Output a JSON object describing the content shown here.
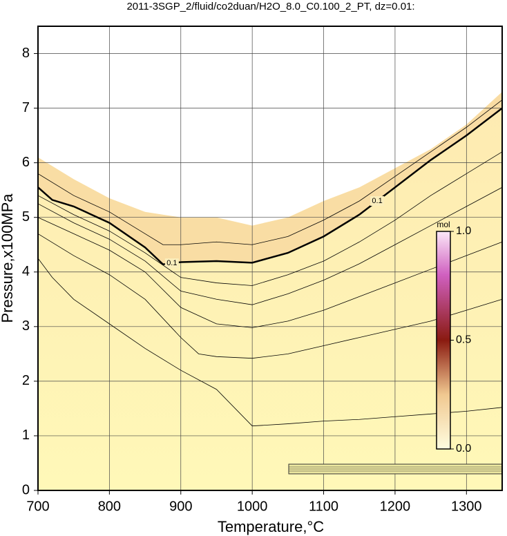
{
  "chart_data": {
    "type": "contour",
    "title": "2011-3SGP_2/fluid/co2duan/H2O_8.0_C0.100_2_PT, dz=0.01:",
    "x_label": "Temperature,°C",
    "y_label": "Pressure,x100MPa",
    "xlim": [
      700,
      1350
    ],
    "ylim": [
      0,
      8.5
    ],
    "xticks": [
      700,
      800,
      900,
      1000,
      1100,
      1200,
      1300
    ],
    "yticks": [
      0,
      1,
      2,
      3,
      4,
      5,
      6,
      7,
      8
    ],
    "grid": true,
    "boundary": {
      "x": [
        700,
        750,
        800,
        850,
        875,
        900,
        950,
        1000,
        1050,
        1100,
        1150,
        1200,
        1250,
        1300,
        1350
      ],
      "values": [
        6.1,
        5.7,
        5.35,
        5.1,
        5.05,
        5.0,
        5.0,
        4.85,
        5.0,
        5.3,
        5.55,
        5.9,
        6.25,
        6.7,
        7.3
      ]
    },
    "series": [
      {
        "label": "0.1",
        "bold": true,
        "x": [
          700,
          720,
          750,
          800,
          850,
          875,
          900,
          950,
          1000,
          1050,
          1100,
          1150,
          1200,
          1250,
          1300,
          1350
        ],
        "values": [
          5.55,
          5.32,
          5.2,
          4.9,
          4.45,
          4.14,
          4.18,
          4.2,
          4.17,
          4.35,
          4.65,
          5.05,
          5.55,
          6.05,
          6.5,
          7.0
        ]
      },
      {
        "x": [
          700,
          720,
          750,
          800,
          850,
          900,
          950,
          1000,
          1050,
          1100,
          1150,
          1200,
          1250,
          1300,
          1350
        ],
        "values": [
          4.25,
          3.9,
          3.5,
          3.05,
          2.6,
          2.2,
          1.85,
          1.18,
          1.22,
          1.27,
          1.3,
          1.35,
          1.4,
          1.45,
          1.52
        ]
      },
      {
        "x": [
          700,
          750,
          800,
          850,
          900,
          925,
          950,
          1000,
          1050,
          1100,
          1150,
          1200,
          1250,
          1300,
          1350
        ],
        "values": [
          4.7,
          4.3,
          3.95,
          3.5,
          2.8,
          2.5,
          2.45,
          2.42,
          2.5,
          2.65,
          2.8,
          2.95,
          3.1,
          3.3,
          3.5
        ]
      },
      {
        "x": [
          700,
          750,
          800,
          850,
          900,
          950,
          1000,
          1050,
          1100,
          1150,
          1200,
          1250,
          1300,
          1350
        ],
        "values": [
          5.0,
          4.7,
          4.4,
          4.0,
          3.35,
          3.05,
          2.98,
          3.1,
          3.3,
          3.55,
          3.8,
          4.05,
          4.3,
          4.55
        ]
      },
      {
        "x": [
          700,
          750,
          800,
          850,
          900,
          950,
          1000,
          1050,
          1100,
          1150,
          1200,
          1250,
          1300,
          1350
        ],
        "values": [
          5.25,
          4.9,
          4.6,
          4.2,
          3.65,
          3.5,
          3.4,
          3.6,
          3.85,
          4.15,
          4.5,
          4.85,
          5.2,
          5.55
        ]
      },
      {
        "x": [
          700,
          750,
          800,
          850,
          900,
          950,
          1000,
          1050,
          1100,
          1150,
          1200,
          1250,
          1300,
          1350
        ],
        "values": [
          5.4,
          5.05,
          4.75,
          4.35,
          3.9,
          3.8,
          3.75,
          3.95,
          4.2,
          4.55,
          4.95,
          5.4,
          5.8,
          6.2
        ]
      },
      {
        "x": [
          700,
          750,
          800,
          850,
          875,
          900,
          950,
          1000,
          1050,
          1100,
          1150,
          1200,
          1250,
          1300,
          1350
        ],
        "values": [
          5.8,
          5.4,
          5.1,
          4.7,
          4.5,
          4.5,
          4.55,
          4.5,
          4.65,
          4.95,
          5.3,
          5.75,
          6.2,
          6.65,
          7.15
        ]
      }
    ],
    "colorbar": {
      "label": "mol",
      "lim": [
        0,
        1
      ],
      "ticks": [
        {
          "value": 0,
          "label": "0.0"
        },
        {
          "value": 0.5,
          "label": "0.5"
        },
        {
          "value": 1,
          "label": "1.0"
        }
      ]
    }
  }
}
